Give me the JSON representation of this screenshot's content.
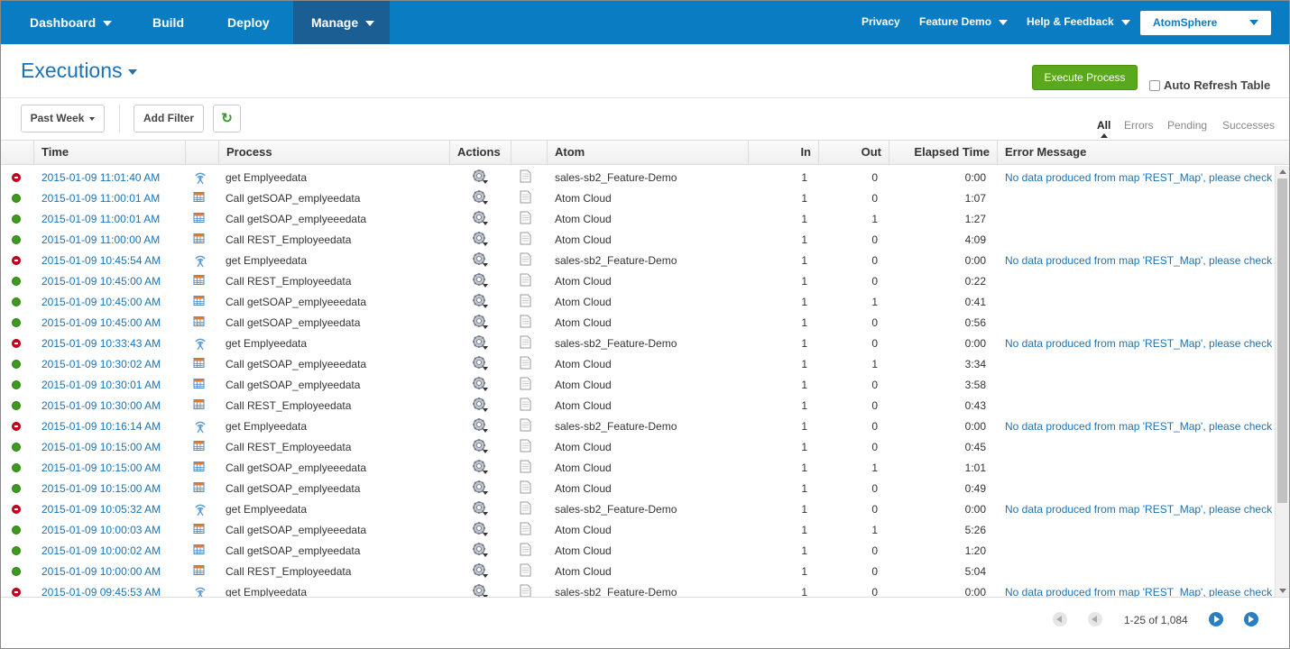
{
  "nav": {
    "left": [
      {
        "label": "Dashboard",
        "dropdown": true
      },
      {
        "label": "Build",
        "dropdown": false
      },
      {
        "label": "Deploy",
        "dropdown": false
      },
      {
        "label": "Manage",
        "dropdown": true,
        "active": true
      }
    ],
    "right": [
      {
        "label": "Privacy",
        "dropdown": false
      },
      {
        "label": "Feature Demo",
        "dropdown": true
      },
      {
        "label": "Help & Feedback",
        "dropdown": true
      }
    ],
    "account": "AtomSphere"
  },
  "header": {
    "title": "Executions",
    "execute_button": "Execute Process",
    "auto_refresh_label": "Auto Refresh Table",
    "auto_refresh_checked": false
  },
  "filters": {
    "range": "Past Week",
    "add_filter": "Add Filter",
    "refresh_icon": "refresh-icon",
    "tabs": [
      {
        "label": "All",
        "active": true
      },
      {
        "label": "Errors",
        "active": false
      },
      {
        "label": "Pending",
        "active": false
      },
      {
        "label": "Successes",
        "active": false
      }
    ]
  },
  "table": {
    "columns": {
      "time": "Time",
      "process": "Process",
      "actions": "Actions",
      "atom": "Atom",
      "in": "In",
      "out": "Out",
      "elapsed": "Elapsed Time",
      "error": "Error Message"
    },
    "rows": [
      {
        "status": "error",
        "time": "2015-01-09 11:01:40 AM",
        "ptype": "listener",
        "process": "get Emplyeedata",
        "atom": "sales-sb2_Feature-Demo",
        "in": "1",
        "out": "0",
        "elapsed": "0:00",
        "error": "No data produced from map 'REST_Map', please check"
      },
      {
        "status": "success",
        "time": "2015-01-09 11:00:01 AM",
        "ptype": "schedule",
        "process": "Call getSOAP_emplyeedata",
        "atom": "Atom Cloud",
        "in": "1",
        "out": "0",
        "elapsed": "1:07",
        "error": ""
      },
      {
        "status": "success",
        "time": "2015-01-09 11:00:01 AM",
        "ptype": "schedule",
        "process": "Call getSOAP_emplyeeedata",
        "atom": "Atom Cloud",
        "in": "1",
        "out": "1",
        "elapsed": "1:27",
        "error": ""
      },
      {
        "status": "success",
        "time": "2015-01-09 11:00:00 AM",
        "ptype": "schedule",
        "process": "Call REST_Employeedata",
        "atom": "Atom Cloud",
        "in": "1",
        "out": "0",
        "elapsed": "4:09",
        "error": ""
      },
      {
        "status": "error",
        "time": "2015-01-09 10:45:54 AM",
        "ptype": "listener",
        "process": "get Emplyeedata",
        "atom": "sales-sb2_Feature-Demo",
        "in": "1",
        "out": "0",
        "elapsed": "0:00",
        "error": "No data produced from map 'REST_Map', please check"
      },
      {
        "status": "success",
        "time": "2015-01-09 10:45:00 AM",
        "ptype": "schedule",
        "process": "Call REST_Employeedata",
        "atom": "Atom Cloud",
        "in": "1",
        "out": "0",
        "elapsed": "0:22",
        "error": ""
      },
      {
        "status": "success",
        "time": "2015-01-09 10:45:00 AM",
        "ptype": "schedule",
        "process": "Call getSOAP_emplyeeedata",
        "atom": "Atom Cloud",
        "in": "1",
        "out": "1",
        "elapsed": "0:41",
        "error": ""
      },
      {
        "status": "success",
        "time": "2015-01-09 10:45:00 AM",
        "ptype": "schedule",
        "process": "Call getSOAP_emplyeedata",
        "atom": "Atom Cloud",
        "in": "1",
        "out": "0",
        "elapsed": "0:56",
        "error": ""
      },
      {
        "status": "error",
        "time": "2015-01-09 10:33:43 AM",
        "ptype": "listener",
        "process": "get Emplyeedata",
        "atom": "sales-sb2_Feature-Demo",
        "in": "1",
        "out": "0",
        "elapsed": "0:00",
        "error": "No data produced from map 'REST_Map', please check"
      },
      {
        "status": "success",
        "time": "2015-01-09 10:30:02 AM",
        "ptype": "schedule",
        "process": "Call getSOAP_emplyeeedata",
        "atom": "Atom Cloud",
        "in": "1",
        "out": "1",
        "elapsed": "3:34",
        "error": ""
      },
      {
        "status": "success",
        "time": "2015-01-09 10:30:01 AM",
        "ptype": "schedule",
        "process": "Call getSOAP_emplyeedata",
        "atom": "Atom Cloud",
        "in": "1",
        "out": "0",
        "elapsed": "3:58",
        "error": ""
      },
      {
        "status": "success",
        "time": "2015-01-09 10:30:00 AM",
        "ptype": "schedule",
        "process": "Call REST_Employeedata",
        "atom": "Atom Cloud",
        "in": "1",
        "out": "0",
        "elapsed": "0:43",
        "error": ""
      },
      {
        "status": "error",
        "time": "2015-01-09 10:16:14 AM",
        "ptype": "listener",
        "process": "get Emplyeedata",
        "atom": "sales-sb2_Feature-Demo",
        "in": "1",
        "out": "0",
        "elapsed": "0:00",
        "error": "No data produced from map 'REST_Map', please check"
      },
      {
        "status": "success",
        "time": "2015-01-09 10:15:00 AM",
        "ptype": "schedule",
        "process": "Call REST_Employeedata",
        "atom": "Atom Cloud",
        "in": "1",
        "out": "0",
        "elapsed": "0:45",
        "error": ""
      },
      {
        "status": "success",
        "time": "2015-01-09 10:15:00 AM",
        "ptype": "schedule",
        "process": "Call getSOAP_emplyeeedata",
        "atom": "Atom Cloud",
        "in": "1",
        "out": "1",
        "elapsed": "1:01",
        "error": ""
      },
      {
        "status": "success",
        "time": "2015-01-09 10:15:00 AM",
        "ptype": "schedule",
        "process": "Call getSOAP_emplyeedata",
        "atom": "Atom Cloud",
        "in": "1",
        "out": "0",
        "elapsed": "0:49",
        "error": ""
      },
      {
        "status": "error",
        "time": "2015-01-09 10:05:32 AM",
        "ptype": "listener",
        "process": "get Emplyeedata",
        "atom": "sales-sb2_Feature-Demo",
        "in": "1",
        "out": "0",
        "elapsed": "0:00",
        "error": "No data produced from map 'REST_Map', please check"
      },
      {
        "status": "success",
        "time": "2015-01-09 10:00:03 AM",
        "ptype": "schedule",
        "process": "Call getSOAP_emplyeeedata",
        "atom": "Atom Cloud",
        "in": "1",
        "out": "1",
        "elapsed": "5:26",
        "error": ""
      },
      {
        "status": "success",
        "time": "2015-01-09 10:00:02 AM",
        "ptype": "schedule",
        "process": "Call getSOAP_emplyeedata",
        "atom": "Atom Cloud",
        "in": "1",
        "out": "0",
        "elapsed": "1:20",
        "error": ""
      },
      {
        "status": "success",
        "time": "2015-01-09 10:00:00 AM",
        "ptype": "schedule",
        "process": "Call REST_Employeedata",
        "atom": "Atom Cloud",
        "in": "1",
        "out": "0",
        "elapsed": "5:04",
        "error": ""
      },
      {
        "status": "error",
        "time": "2015-01-09 09:45:53 AM",
        "ptype": "listener",
        "process": "get Emplyeedata",
        "atom": "sales-sb2_Feature-Demo",
        "in": "1",
        "out": "0",
        "elapsed": "0:00",
        "error": "No data produced from map 'REST_Map', please check"
      }
    ]
  },
  "pager": {
    "summary": "1-25 of 1,084"
  },
  "colors": {
    "nav_bg": "#0a7cc1",
    "nav_active": "#1b5e93",
    "link": "#1a73b8",
    "success": "#3c9a1e",
    "error": "#d0021b",
    "execute": "#5aa81b"
  }
}
